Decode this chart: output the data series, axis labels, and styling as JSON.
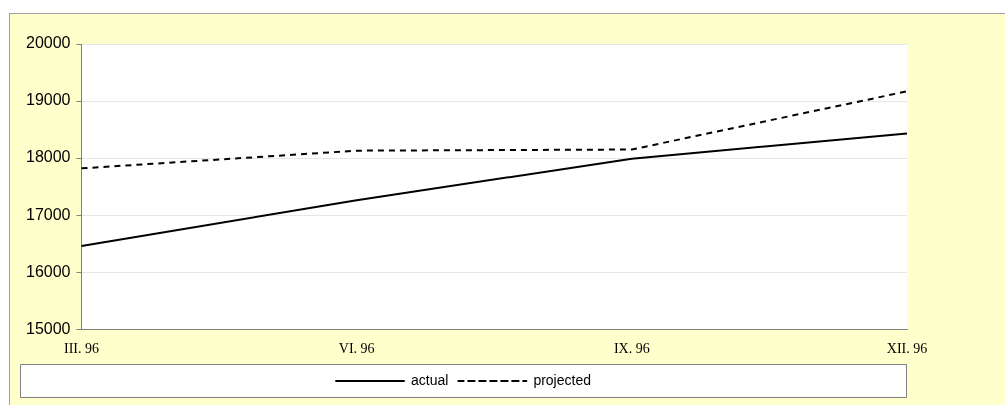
{
  "chart_data": {
    "type": "line",
    "categories": [
      "III. 96",
      "VI. 96",
      "IX. 96",
      "XII. 96"
    ],
    "series": [
      {
        "name": "actual",
        "color": "#000000",
        "values": [
          16460,
          17260,
          17990,
          18430
        ],
        "line_style": "solid"
      },
      {
        "name": "projected",
        "color": "#000000",
        "values": [
          17820,
          18130,
          18150,
          19170
        ],
        "line_style": "dashed"
      }
    ],
    "ylim": [
      15000,
      20000
    ],
    "yticks": [
      15000,
      16000,
      17000,
      18000,
      19000,
      20000
    ],
    "grid": "y",
    "legend": "bottom",
    "marker": "none"
  }
}
